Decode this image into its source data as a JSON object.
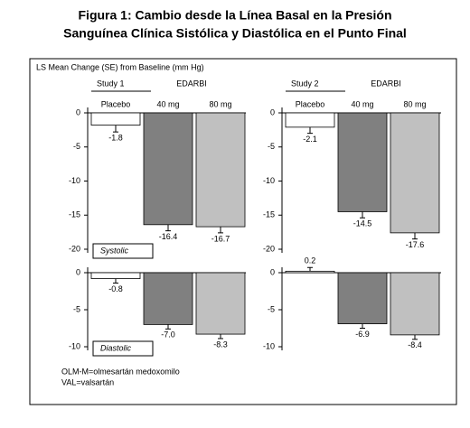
{
  "title": [
    "Figura 1: Cambio desde la Línea Basal en la Presión",
    "Sanguínea Clínica Sistólica y Diastólica en el Punto Final"
  ],
  "y_axis_label": "LS Mean Change (SE) from Baseline (mm Hg)",
  "footnotes": [
    "OLM-M=olmesartán medoxomilo",
    "VAL=valsartán"
  ],
  "chart_data": [
    {
      "type": "bar",
      "study": "Study 1",
      "group_label": "EDARBI",
      "panel_label": "Systolic",
      "categories": [
        "Placebo",
        "40 mg",
        "80 mg"
      ],
      "values": [
        -1.8,
        -16.4,
        -16.7
      ],
      "errors": [
        1.0,
        0.9,
        0.9
      ],
      "colors": [
        "#ffffff",
        "#808080",
        "#c0c0c0"
      ],
      "ylim": [
        -20,
        0
      ],
      "yticks": [
        0,
        -5,
        -10,
        -15,
        -20
      ]
    },
    {
      "type": "bar",
      "study": "Study 2",
      "group_label": "EDARBI",
      "categories": [
        "Placebo",
        "40 mg",
        "80 mg"
      ],
      "values": [
        -2.1,
        -14.5,
        -17.6
      ],
      "errors": [
        0.9,
        0.9,
        0.9
      ],
      "colors": [
        "#ffffff",
        "#808080",
        "#c0c0c0"
      ],
      "ylim": [
        -20,
        0
      ],
      "yticks": [
        0,
        -5,
        -10,
        -15,
        -20
      ]
    },
    {
      "type": "bar",
      "panel_label": "Diastolic",
      "categories": [
        null,
        null,
        null
      ],
      "values": [
        -0.8,
        -7,
        -8.3
      ],
      "value_labels": [
        "-0.8",
        "-7.0",
        "-8.3"
      ],
      "errors": [
        0.6,
        0.6,
        0.6
      ],
      "colors": [
        "#ffffff",
        "#808080",
        "#c0c0c0"
      ],
      "ylim": [
        -10,
        0
      ],
      "yticks": [
        0,
        -5,
        -10
      ]
    },
    {
      "type": "bar",
      "categories": [
        null,
        null,
        null
      ],
      "values": [
        0.2,
        -6.9,
        -8.4
      ],
      "errors": [
        0.5,
        0.6,
        0.6
      ],
      "colors": [
        "#ffffff",
        "#808080",
        "#c0c0c0"
      ],
      "ylim": [
        -10,
        0
      ],
      "yticks": [
        0,
        -5,
        -10
      ]
    }
  ]
}
